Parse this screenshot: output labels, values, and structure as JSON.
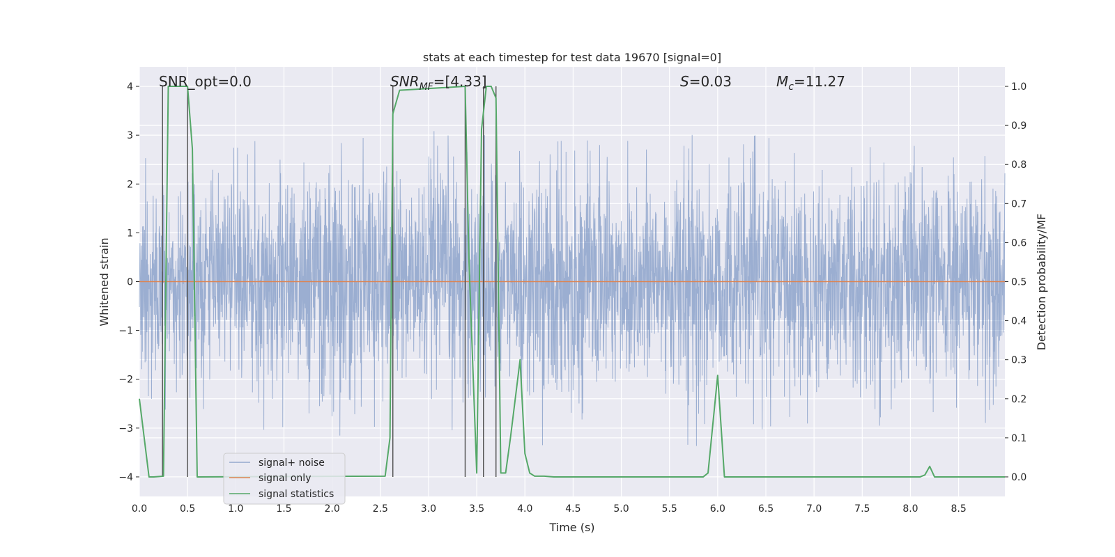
{
  "chart_data": {
    "type": "line",
    "title": "stats at each timestep for test data 19670 [signal=0]",
    "xlabel": "Time (s)",
    "ylabel": "Whitened strain",
    "ylabel_right": "Detection probability/MF",
    "xlim": [
      0,
      8.98
    ],
    "ylim": [
      -4.4,
      4.4
    ],
    "ylim_right": [
      -0.05,
      1.05
    ],
    "x_ticks": [
      "0.0",
      "0.5",
      "1.0",
      "1.5",
      "2.0",
      "2.5",
      "3.0",
      "3.5",
      "4.0",
      "4.5",
      "5.0",
      "5.5",
      "6.0",
      "6.5",
      "7.0",
      "7.5",
      "8.0",
      "8.5"
    ],
    "y_ticks": [
      "4",
      "3",
      "2",
      "1",
      "0",
      "−1",
      "−2",
      "−3",
      "−4"
    ],
    "y_ticks_right": [
      "1.0",
      "0.9",
      "0.8",
      "0.7",
      "0.6",
      "0.5",
      "0.4",
      "0.3",
      "0.2",
      "0.1",
      "0.0"
    ],
    "grid": true,
    "legend_position": "lower-left",
    "annotations": {
      "snr_opt": "SNR_opt=0.0",
      "snr_mf_main": "SNR",
      "snr_mf_sub": "MF",
      "snr_mf_rest": "=[4.33]",
      "s_main": "S",
      "s_rest": "=0.03",
      "mc_main": "M",
      "mc_sub": "c",
      "mc_rest": "=11.27"
    },
    "colors": {
      "signal_noise": "#4c72b0",
      "signal_only": "#dd8452",
      "signal_statistics": "#55a868",
      "vlines": "#4d4d4d",
      "axes_bg": "#eaeaf2"
    },
    "series": [
      {
        "name": "signal+ noise",
        "noise_std": 1.0,
        "peak_envelope": [
          [
            0.0,
            2.4
          ],
          [
            0.1,
            2.6
          ],
          [
            0.25,
            2.7
          ],
          [
            0.5,
            2.2
          ],
          [
            0.62,
            2.9
          ],
          [
            0.8,
            3.05
          ],
          [
            1.05,
            2.7
          ],
          [
            1.3,
            3.0
          ],
          [
            1.65,
            2.9
          ],
          [
            1.9,
            3.4
          ],
          [
            2.2,
            2.8
          ],
          [
            2.45,
            3.1
          ],
          [
            2.75,
            3.2
          ],
          [
            3.05,
            3.1
          ],
          [
            3.25,
            3.3
          ],
          [
            3.55,
            3.0
          ],
          [
            3.85,
            3.0
          ],
          [
            4.1,
            2.8
          ],
          [
            4.6,
            2.95
          ],
          [
            4.85,
            3.35
          ],
          [
            5.2,
            2.9
          ],
          [
            5.55,
            3.15
          ],
          [
            6.0,
            2.8
          ],
          [
            6.4,
            3.0
          ],
          [
            6.75,
            2.85
          ],
          [
            7.05,
            3.05
          ],
          [
            7.45,
            3.15
          ],
          [
            7.85,
            2.8
          ],
          [
            8.3,
            2.75
          ],
          [
            8.65,
            3.2
          ],
          [
            8.98,
            2.7
          ]
        ],
        "trough_envelope": [
          [
            0.0,
            -2.2
          ],
          [
            0.25,
            -2.6
          ],
          [
            0.5,
            -2.9
          ],
          [
            0.95,
            -2.85
          ],
          [
            1.5,
            -3.4
          ],
          [
            1.85,
            -2.7
          ],
          [
            2.0,
            -3.2
          ],
          [
            2.35,
            -3.0
          ],
          [
            2.7,
            -2.9
          ],
          [
            3.05,
            -3.0
          ],
          [
            3.55,
            -3.1
          ],
          [
            3.9,
            -2.85
          ],
          [
            4.25,
            -3.6
          ],
          [
            4.6,
            -2.9
          ],
          [
            5.0,
            -3.05
          ],
          [
            5.35,
            -3.2
          ],
          [
            5.75,
            -3.5
          ],
          [
            6.25,
            -3.0
          ],
          [
            6.7,
            -3.05
          ],
          [
            7.1,
            -2.8
          ],
          [
            7.55,
            -3.0
          ],
          [
            7.95,
            -2.85
          ],
          [
            8.25,
            -3.7
          ],
          [
            8.55,
            -3.0
          ],
          [
            8.98,
            -2.8
          ]
        ]
      },
      {
        "name": "signal only",
        "x": [
          0.0,
          8.98
        ],
        "y": [
          0.0,
          0.0
        ]
      },
      {
        "name": "signal statistics",
        "axis": "right",
        "x": [
          0.0,
          0.1,
          0.15,
          0.25,
          0.3,
          0.5,
          0.55,
          0.6,
          0.62,
          2.55,
          2.6,
          2.63,
          2.7,
          3.38,
          3.42,
          3.5,
          3.55,
          3.6,
          3.65,
          3.7,
          3.75,
          3.8,
          3.85,
          3.95,
          4.0,
          4.05,
          4.1,
          4.2,
          4.3,
          4.8,
          5.85,
          5.9,
          6.0,
          6.07,
          8.1,
          8.15,
          8.2,
          8.25,
          8.98
        ],
        "y": [
          0.2,
          0.0,
          0.0,
          0.002,
          1.0,
          1.0,
          0.84,
          0.0,
          0.0,
          0.002,
          0.1,
          0.93,
          0.99,
          1.0,
          0.55,
          0.01,
          0.89,
          1.0,
          1.0,
          0.97,
          0.01,
          0.01,
          0.1,
          0.3,
          0.06,
          0.01,
          0.002,
          0.002,
          0.0,
          0.0,
          0.0,
          0.01,
          0.26,
          0.0,
          0.0,
          0.005,
          0.027,
          0.0,
          0.0
        ]
      }
    ],
    "vertical_lines_x": [
      0.24,
      0.5,
      2.63,
      3.38,
      3.57,
      3.7
    ],
    "legend": [
      "signal+ noise",
      "signal only",
      "signal statistics"
    ]
  }
}
